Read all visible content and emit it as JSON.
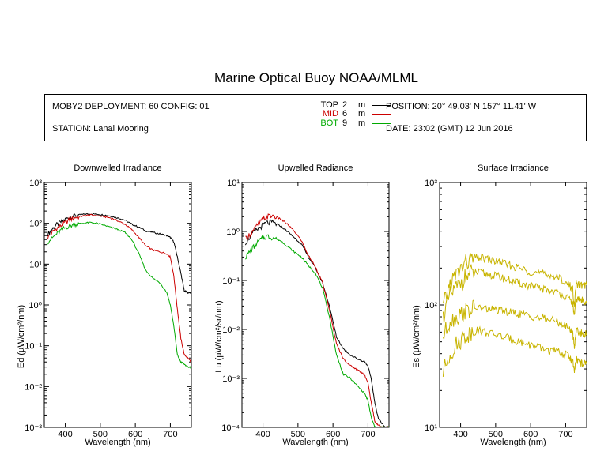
{
  "title": "Marine Optical Buoy NOAA/MLML",
  "info": {
    "deployment": "MOBY2 DEPLOYMENT: 60 CONFIG: 01",
    "station": "STATION: Lanai Mooring",
    "position": "POSITION: 20° 49.03' N   157° 11.41' W",
    "date": "DATE: 23:02 (GMT) 12 Jun 2016"
  },
  "legend": [
    {
      "name": "TOP",
      "depth": "2",
      "unit": "m",
      "color": "#000000"
    },
    {
      "name": "MID",
      "depth": "6",
      "unit": "m",
      "color": "#cc0000"
    },
    {
      "name": "BOT",
      "depth": "9",
      "unit": "m",
      "color": "#00aa00"
    }
  ],
  "chart_data": [
    {
      "type": "line",
      "title": "Downwelled Irradiance",
      "xlabel": "Wavelength (nm)",
      "ylabel": "Ed (µW/cm²/nm)",
      "yscale": "log",
      "xlim": [
        340,
        760
      ],
      "ylim": [
        0.001,
        1000
      ],
      "xticks": [
        400,
        500,
        600,
        700
      ],
      "yticks_exp": [
        -3,
        -2,
        -1,
        0,
        1,
        2,
        3
      ],
      "x": [
        350,
        370,
        390,
        410,
        430,
        450,
        470,
        490,
        510,
        530,
        550,
        570,
        590,
        610,
        630,
        650,
        670,
        690,
        700,
        710,
        720,
        730,
        740,
        750,
        760
      ],
      "series": [
        {
          "name": "TOP",
          "color": "#000000",
          "values": [
            55,
            85,
            110,
            140,
            155,
            165,
            170,
            168,
            160,
            150,
            135,
            120,
            95,
            80,
            65,
            60,
            55,
            50,
            45,
            35,
            15,
            6,
            2.2,
            2,
            2
          ]
        },
        {
          "name": "MID",
          "color": "#cc0000",
          "values": [
            45,
            70,
            90,
            120,
            140,
            150,
            160,
            155,
            145,
            135,
            115,
            95,
            70,
            45,
            28,
            22,
            20,
            18,
            15,
            5,
            0.8,
            0.15,
            0.06,
            0.05,
            0.04
          ]
        },
        {
          "name": "BOT",
          "color": "#00aa00",
          "values": [
            35,
            50,
            70,
            85,
            95,
            100,
            105,
            100,
            90,
            80,
            70,
            60,
            40,
            18,
            7,
            4.5,
            3.5,
            2,
            1,
            0.3,
            0.06,
            0.04,
            0.035,
            0.03,
            0.03
          ]
        }
      ]
    },
    {
      "type": "line",
      "title": "Upwelled Radiance",
      "xlabel": "Wavelength (nm)",
      "ylabel": "Lu (µW/cm²/sr/nm)",
      "yscale": "log",
      "xlim": [
        340,
        760
      ],
      "ylim": [
        0.0001,
        10
      ],
      "xticks": [
        400,
        500,
        600,
        700
      ],
      "yticks_exp": [
        -4,
        -3,
        -2,
        -1,
        0,
        1
      ],
      "x": [
        350,
        370,
        390,
        410,
        430,
        450,
        470,
        490,
        510,
        530,
        550,
        570,
        590,
        610,
        630,
        650,
        670,
        690,
        700,
        710,
        720,
        730,
        740,
        750,
        760
      ],
      "series": [
        {
          "name": "TOP",
          "color": "#000000",
          "values": [
            0.6,
            0.9,
            1.2,
            1.5,
            1.5,
            1.3,
            1.0,
            0.75,
            0.55,
            0.3,
            0.18,
            0.09,
            0.03,
            0.007,
            0.004,
            0.003,
            0.0025,
            0.0022,
            0.0018,
            0.0009,
            0.0003,
            0.00015,
            0.00012,
            0.0001,
            0.0001
          ]
        },
        {
          "name": "MID",
          "color": "#cc0000",
          "values": [
            0.7,
            1.0,
            1.5,
            2.0,
            2.1,
            1.8,
            1.4,
            1.0,
            0.65,
            0.32,
            0.19,
            0.09,
            0.025,
            0.005,
            0.0025,
            0.0018,
            0.0015,
            0.0012,
            0.0008,
            0.0003,
            0.00013,
            0.00011,
            0.0001,
            0.0001,
            0.0001
          ]
        },
        {
          "name": "BOT",
          "color": "#00aa00",
          "values": [
            0.3,
            0.45,
            0.65,
            0.8,
            0.75,
            0.65,
            0.5,
            0.38,
            0.3,
            0.2,
            0.14,
            0.07,
            0.018,
            0.003,
            0.0012,
            0.001,
            0.0007,
            0.0005,
            0.00035,
            0.00015,
            0.0001,
            0.0001,
            0.0001,
            0.0001,
            0.0001
          ]
        }
      ]
    },
    {
      "type": "line",
      "title": "Surface Irradiance",
      "xlabel": "Wavelength (nm)",
      "ylabel": "Es (µW/cm²/nm)",
      "yscale": "log",
      "xlim": [
        340,
        760
      ],
      "ylim": [
        10,
        1000
      ],
      "xticks": [
        400,
        500,
        600,
        700
      ],
      "yticks_exp": [
        1,
        2,
        3
      ],
      "x": [
        350,
        370,
        390,
        410,
        430,
        450,
        470,
        490,
        510,
        530,
        550,
        570,
        590,
        610,
        630,
        650,
        670,
        690,
        710,
        720,
        725,
        730,
        740,
        750,
        760
      ],
      "series": [
        {
          "color": "#c8b400",
          "values": [
            95,
            150,
            180,
            215,
            235,
            245,
            240,
            230,
            225,
            215,
            205,
            200,
            190,
            185,
            180,
            175,
            170,
            160,
            145,
            135,
            95,
            150,
            145,
            145,
            145
          ]
        },
        {
          "color": "#c8b400",
          "values": [
            80,
            120,
            140,
            165,
            180,
            185,
            180,
            175,
            170,
            162,
            155,
            150,
            145,
            140,
            136,
            132,
            128,
            122,
            110,
            104,
            80,
            112,
            110,
            108,
            108
          ]
        },
        {
          "color": "#c8b400",
          "values": [
            55,
            75,
            80,
            88,
            92,
            95,
            93,
            92,
            90,
            88,
            86,
            85,
            82,
            80,
            78,
            76,
            74,
            70,
            64,
            60,
            45,
            62,
            60,
            58,
            58
          ]
        },
        {
          "color": "#c8b400",
          "values": [
            28,
            40,
            48,
            55,
            60,
            62,
            60,
            58,
            56,
            54,
            52,
            50,
            48,
            46,
            44,
            43,
            42,
            40,
            38,
            35,
            28,
            36,
            34,
            33,
            33
          ]
        }
      ]
    }
  ]
}
